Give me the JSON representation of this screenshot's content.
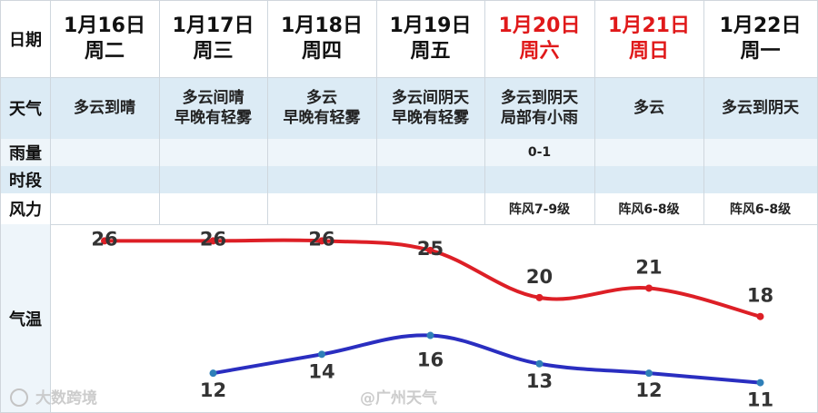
{
  "labels": {
    "date": "日期",
    "weather": "天气",
    "rain_line1": "雨量",
    "rain_line2": "时段",
    "wind": "风力",
    "temp": "气温"
  },
  "days": [
    {
      "date": "1月16日",
      "dow": "周二",
      "weather": [
        "多云到晴"
      ],
      "rain": "",
      "wind": "",
      "weekend": false
    },
    {
      "date": "1月17日",
      "dow": "周三",
      "weather": [
        "多云间晴",
        "早晚有轻雾"
      ],
      "rain": "",
      "wind": "",
      "weekend": false
    },
    {
      "date": "1月18日",
      "dow": "周四",
      "weather": [
        "多云",
        "早晚有轻雾"
      ],
      "rain": "",
      "wind": "",
      "weekend": false
    },
    {
      "date": "1月19日",
      "dow": "周五",
      "weather": [
        "多云间阴天",
        "早晚有轻雾"
      ],
      "rain": "",
      "wind": "",
      "weekend": false
    },
    {
      "date": "1月20日",
      "dow": "周六",
      "weather": [
        "多云到阴天",
        "局部有小雨"
      ],
      "rain": "0-1",
      "wind": "阵风7-9级",
      "weekend": true
    },
    {
      "date": "1月21日",
      "dow": "周日",
      "weather": [
        "多云"
      ],
      "rain": "",
      "wind": "阵风6-8级",
      "weekend": true
    },
    {
      "date": "1月22日",
      "dow": "周一",
      "weather": [
        "多云到阴天"
      ],
      "rain": "",
      "wind": "阵风6-8级",
      "weekend": false
    }
  ],
  "chart_data": {
    "type": "line",
    "x": [
      "1月16日",
      "1月17日",
      "1月18日",
      "1月19日",
      "1月20日",
      "1月21日",
      "1月22日"
    ],
    "series": [
      {
        "values": [
          26,
          26,
          26,
          25,
          20,
          21,
          18
        ],
        "color": "#dd1f26"
      },
      {
        "values": [
          null,
          12,
          14,
          16,
          13,
          12,
          11
        ],
        "color": "#2a2ec0"
      }
    ],
    "ylim": [
      10,
      27
    ],
    "grid": false,
    "point_color": "#2e7fb8"
  },
  "watermarks": {
    "left": "大数跨境",
    "center": "@广州天气"
  }
}
